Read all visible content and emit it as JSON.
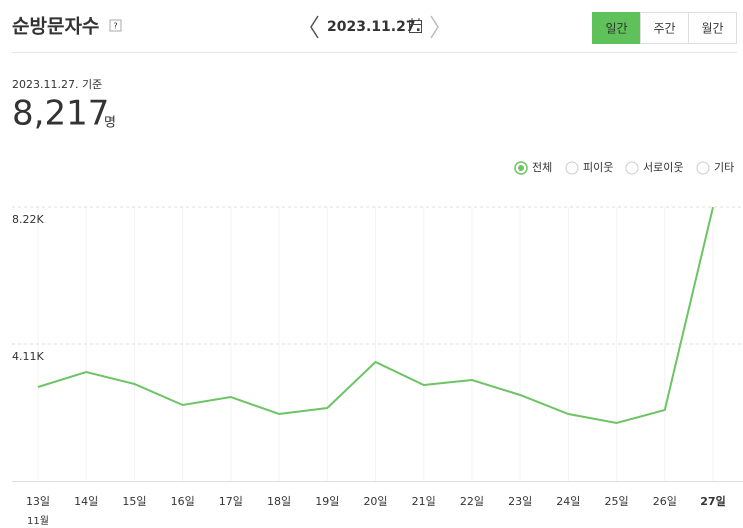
{
  "header": {
    "title": "순방문자수",
    "help": "?",
    "date": "2023.11.27."
  },
  "tabs": {
    "options": [
      "일간",
      "주간",
      "월간"
    ],
    "selected": 0
  },
  "summary": {
    "date_label": "2023.11.27. 기준",
    "value": "8,217",
    "unit": "명"
  },
  "filters": {
    "options": [
      "피이웃",
      "서로이웃",
      "기타"
    ]
  },
  "chart_data": {
    "type": "line",
    "categories": [
      "13일",
      "14일",
      "15일",
      "16일",
      "17일",
      "18일",
      "19일",
      "20일",
      "21일",
      "22일",
      "23일",
      "24일",
      "25일",
      "26일",
      "27일"
    ],
    "x_annotation": "11월",
    "series": [
      {
        "name": "전체",
        "color": "#6cc464",
        "values": [
          2820,
          3270,
          2910,
          2280,
          2520,
          2010,
          2190,
          3570,
          2880,
          3030,
          2580,
          2010,
          1740,
          2130,
          8217
        ]
      }
    ],
    "ylim": [
      0,
      8220
    ],
    "yticks": [
      {
        "value": 4110,
        "label": "4.11K"
      },
      {
        "value": 8220,
        "label": "8.22K"
      }
    ],
    "grid": true
  }
}
